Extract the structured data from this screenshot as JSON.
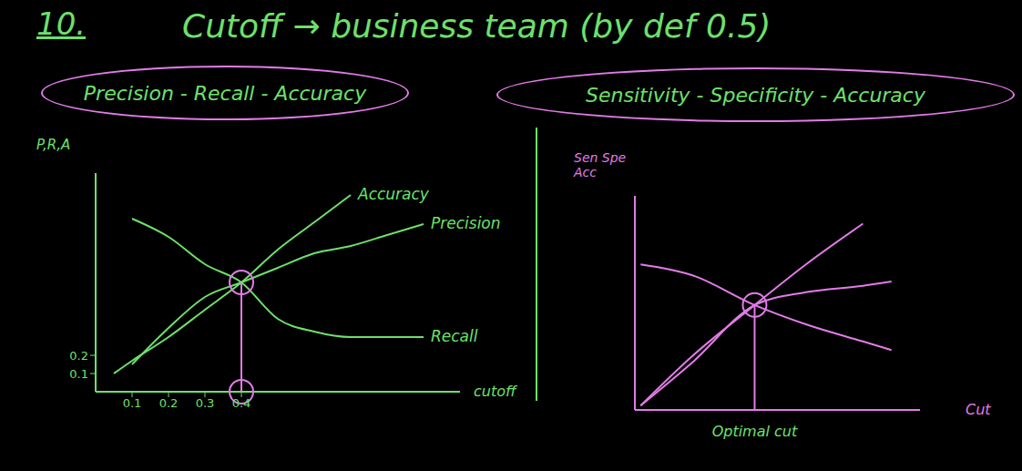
{
  "header": {
    "number": "10.",
    "text": "Cutoff → business team (by def 0.5)"
  },
  "chart_data": [
    {
      "type": "line",
      "title": "Precision - Recall - Accuracy",
      "x_label": "cutoff",
      "y_label": "P,R,A",
      "x": [
        0.05,
        0.1,
        0.2,
        0.3,
        0.4,
        0.5,
        0.6,
        0.7,
        0.8,
        0.9
      ],
      "series": [
        {
          "name": "Accuracy",
          "color": "#6ee06a",
          "values": [
            0.1,
            0.17,
            0.3,
            0.45,
            0.6,
            0.78,
            0.93,
            1.08,
            null,
            null
          ]
        },
        {
          "name": "Precision",
          "color": "#6ee06a",
          "values": [
            null,
            0.15,
            0.35,
            0.52,
            0.6,
            0.68,
            0.76,
            0.8,
            0.86,
            0.92
          ]
        },
        {
          "name": "Recall",
          "color": "#6ee06a",
          "values": [
            null,
            0.95,
            0.85,
            0.7,
            0.6,
            0.4,
            0.33,
            0.3,
            0.3,
            0.3
          ]
        }
      ],
      "xlim": [
        0,
        1
      ],
      "ylim": [
        0,
        1.2
      ],
      "xticks": [
        0.1,
        0.2,
        0.3,
        0.4
      ],
      "yticks": [
        0.1,
        0.2
      ],
      "crossing": {
        "x": 0.4,
        "y": 0.6
      }
    },
    {
      "type": "line",
      "title": "Sensitivity - Specificity - Accuracy",
      "x_label": "Cut",
      "y_label": "Sen Spe Acc",
      "x": [
        0.02,
        0.2,
        0.42,
        0.6,
        0.8,
        0.9
      ],
      "series": [
        {
          "color": "#e27be8",
          "values": [
            0.68,
            0.63,
            0.49,
            0.4,
            0.32,
            0.28
          ]
        },
        {
          "color": "#e27be8",
          "values": [
            0.02,
            0.25,
            0.49,
            0.68,
            0.87,
            null
          ]
        },
        {
          "color": "#e27be8",
          "values": [
            0.02,
            0.22,
            0.49,
            0.55,
            0.58,
            0.6
          ]
        }
      ],
      "xlim": [
        0,
        1
      ],
      "ylim": [
        0,
        1
      ],
      "xticks": [],
      "yticks": [],
      "tick_labels": false,
      "crossing": {
        "x": 0.42,
        "y": 0.49
      },
      "annotations": [
        {
          "text": "Optimal cut",
          "x": 0.42
        }
      ]
    }
  ]
}
